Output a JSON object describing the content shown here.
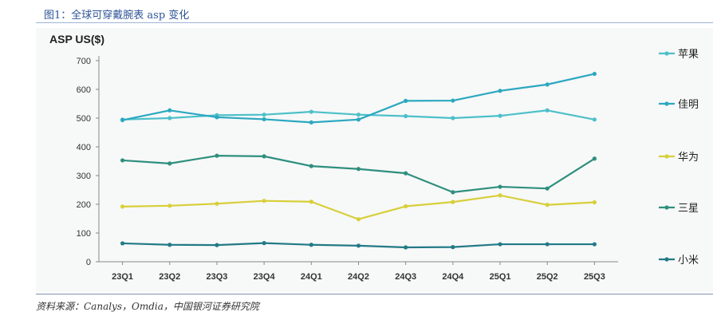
{
  "figure_title": "图1：全球可穿戴腕表 asp 变化",
  "source": "资料来源：Canalys，Omdia，中国银河证券研究院",
  "chart_data": {
    "type": "line",
    "title": "ASP US($)",
    "xlabel": "",
    "ylabel": "ASP US($)",
    "ylim": [
      0,
      700
    ],
    "yticks": [
      0,
      100,
      200,
      300,
      400,
      500,
      600,
      700
    ],
    "grid": false,
    "legend_position": "right",
    "categories": [
      "23Q1",
      "23Q2",
      "23Q3",
      "23Q4",
      "24Q1",
      "24Q2",
      "24Q3",
      "24Q4",
      "25Q1",
      "25Q2",
      "25Q3"
    ],
    "series": [
      {
        "name": "苹果",
        "color": "#4cc0c9",
        "values": [
          495,
          500,
          510,
          512,
          522,
          512,
          507,
          500,
          508,
          527,
          495
        ]
      },
      {
        "name": "佳明",
        "color": "#2ba8c0",
        "values": [
          493,
          527,
          503,
          496,
          485,
          495,
          560,
          561,
          595,
          617,
          654
        ]
      },
      {
        "name": "华为",
        "color": "#d8cf3a",
        "values": [
          192,
          195,
          202,
          212,
          209,
          148,
          193,
          208,
          231,
          198,
          207
        ]
      },
      {
        "name": "三星",
        "color": "#2e8f7e",
        "values": [
          353,
          342,
          369,
          367,
          333,
          323,
          308,
          242,
          261,
          255,
          359
        ]
      },
      {
        "name": "小米",
        "color": "#227a86",
        "values": [
          64,
          59,
          58,
          65,
          59,
          56,
          50,
          51,
          61,
          61,
          61
        ]
      }
    ]
  }
}
